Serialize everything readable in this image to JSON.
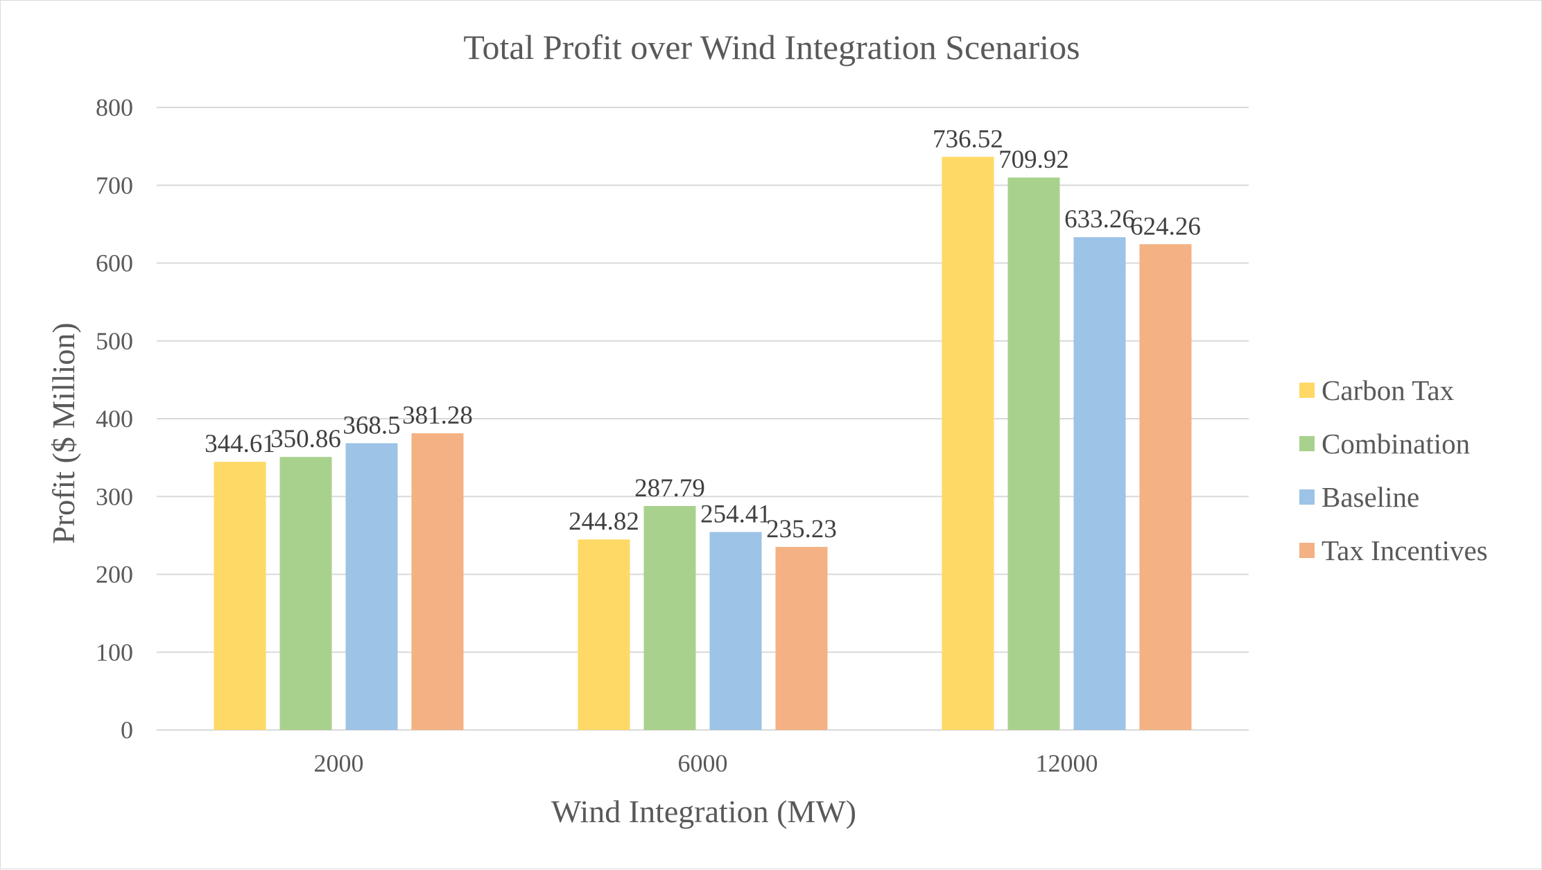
{
  "chart_data": {
    "type": "bar",
    "title": "Total Profit over Wind Integration Scenarios",
    "xlabel": "Wind Integration (MW)",
    "ylabel": "Profit ($ Million)",
    "categories": [
      "2000",
      "6000",
      "12000"
    ],
    "ylim": [
      0,
      800
    ],
    "yticks": [
      "0",
      "100",
      "200",
      "300",
      "400",
      "500",
      "600",
      "700",
      "800"
    ],
    "grid": true,
    "legend_position": "right",
    "series": [
      {
        "name": "Carbon Tax",
        "color": "#FFD966",
        "values": [
          344.61,
          244.82,
          736.52
        ],
        "labels": [
          "344.61",
          "244.82",
          "736.52"
        ]
      },
      {
        "name": "Combination",
        "color": "#A9D18E",
        "values": [
          350.86,
          287.79,
          709.92
        ],
        "labels": [
          "350.86",
          "287.79",
          "709.92"
        ]
      },
      {
        "name": "Baseline",
        "color": "#9DC3E6",
        "values": [
          368.5,
          254.41,
          633.26
        ],
        "labels": [
          "368.5",
          "254.41",
          "633.26"
        ]
      },
      {
        "name": "Tax Incentives",
        "color": "#F4B183",
        "values": [
          381.28,
          235.23,
          624.26
        ],
        "labels": [
          "381.28",
          "235.23",
          "624.26"
        ]
      }
    ]
  }
}
